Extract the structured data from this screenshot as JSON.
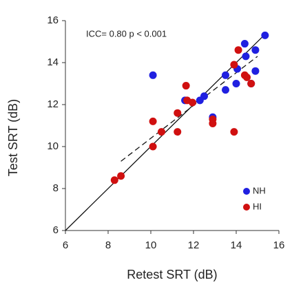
{
  "chart_data": {
    "type": "scatter",
    "x_label": "Retest SRT (dB)",
    "y_label": "Test SRT (dB)",
    "annotation": "ICC= 0.80 p < 0.001",
    "xlim": [
      6,
      16
    ],
    "ylim": [
      6,
      16
    ],
    "xticks": [
      6,
      8,
      10,
      12,
      14,
      16
    ],
    "yticks": [
      6,
      8,
      10,
      12,
      14,
      16
    ],
    "legend": "lower right",
    "series": [
      {
        "name": "NH",
        "color": "#2020e0",
        "x": [
          10.1,
          11.6,
          12.3,
          12.5,
          12.9,
          13.5,
          14.4,
          14.9,
          15.35,
          14.45,
          14.05,
          14.0,
          14.9,
          13.5,
          14.7
        ],
        "values": [
          13.4,
          12.2,
          12.2,
          12.4,
          11.4,
          12.7,
          14.9,
          14.6,
          15.3,
          14.3,
          13.7,
          13.0,
          13.6,
          13.4,
          13.0
        ]
      },
      {
        "name": "HI",
        "color": "#d01010",
        "x": [
          8.3,
          8.6,
          10.1,
          10.1,
          10.5,
          11.25,
          11.25,
          11.65,
          11.7,
          11.95,
          12.9,
          12.9,
          13.9,
          13.9,
          14.1,
          14.4,
          14.7,
          14.5
        ],
        "values": [
          8.4,
          8.6,
          11.2,
          10.0,
          10.7,
          10.7,
          11.6,
          12.9,
          12.2,
          12.1,
          11.3,
          11.1,
          10.7,
          13.9,
          14.6,
          13.4,
          13.0,
          13.3
        ]
      }
    ],
    "lines": [
      {
        "x": [
          6,
          15.4
        ],
        "y": [
          6,
          15.4
        ],
        "dashed": false
      },
      {
        "x": [
          8.6,
          15.0
        ],
        "y": [
          9.3,
          14.3
        ],
        "dashed": true
      }
    ]
  }
}
